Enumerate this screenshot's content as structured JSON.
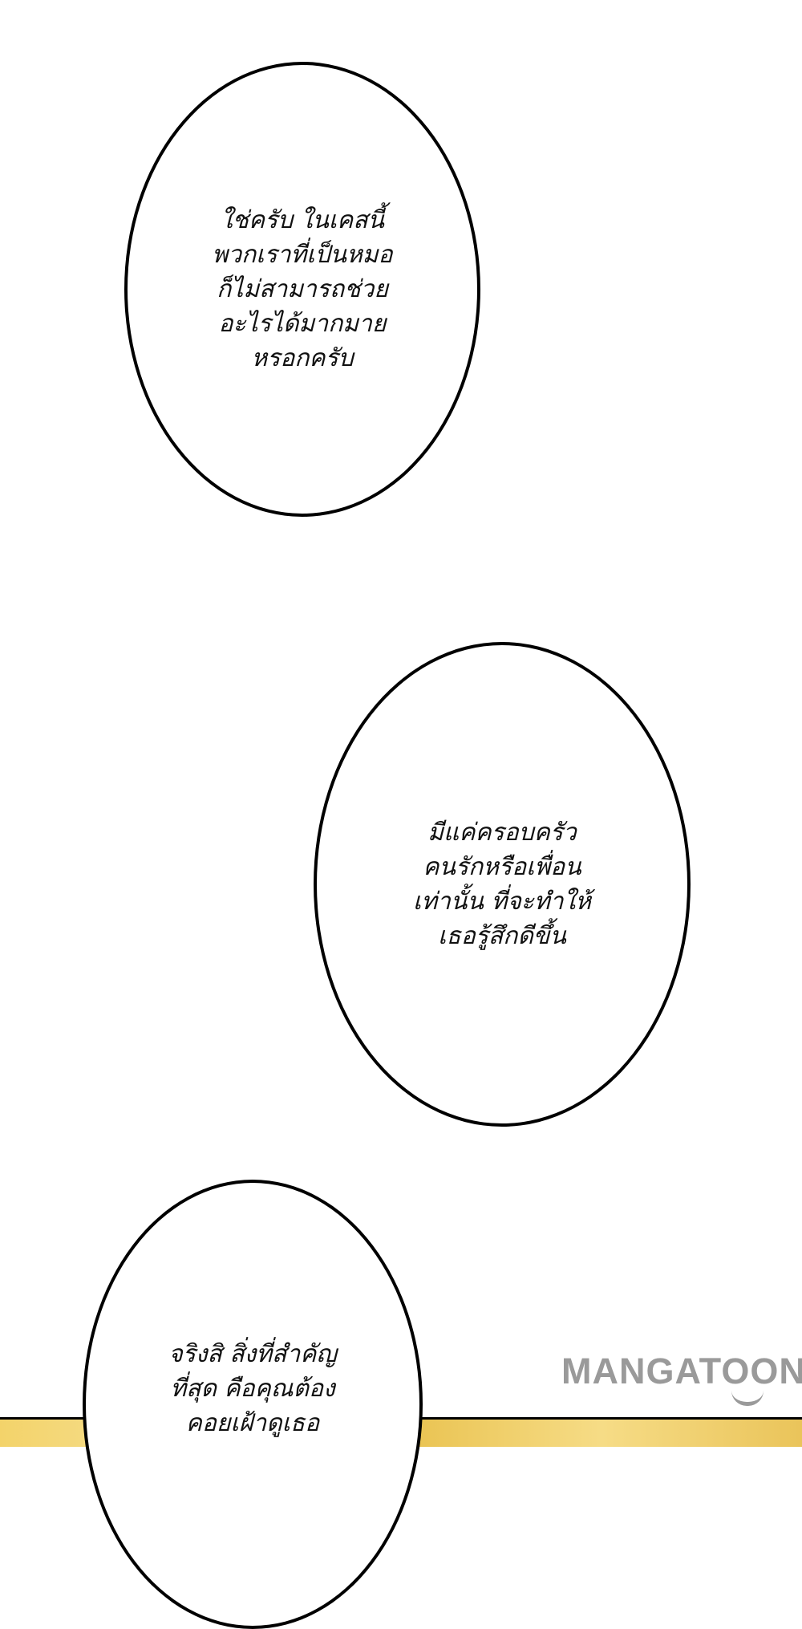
{
  "bubbles": [
    {
      "lines": [
        "ใช่ครับ ในเคสนี้",
        "พวกเราที่เป็นหมอ",
        "ก็ไม่สามารถช่วย",
        "อะไรได้มากมาย",
        "หรอกครับ"
      ]
    },
    {
      "lines": [
        "มีแค่ครอบครัว",
        "คนรักหรือเพื่อน",
        "เท่านั้น ที่จะทำให้",
        "เธอรู้สึกดีขึ้น"
      ]
    },
    {
      "lines": [
        "จริงสิ สิ่งที่สำคัญ",
        "ที่สุด คือคุณต้อง",
        "คอยเฝ้าดูเธอ"
      ]
    }
  ],
  "watermark": {
    "text": "MANGATOON",
    "color": "#9a9a9a"
  },
  "colors": {
    "bubble_border": "#000000",
    "panel_gold": "#f3d36a"
  }
}
